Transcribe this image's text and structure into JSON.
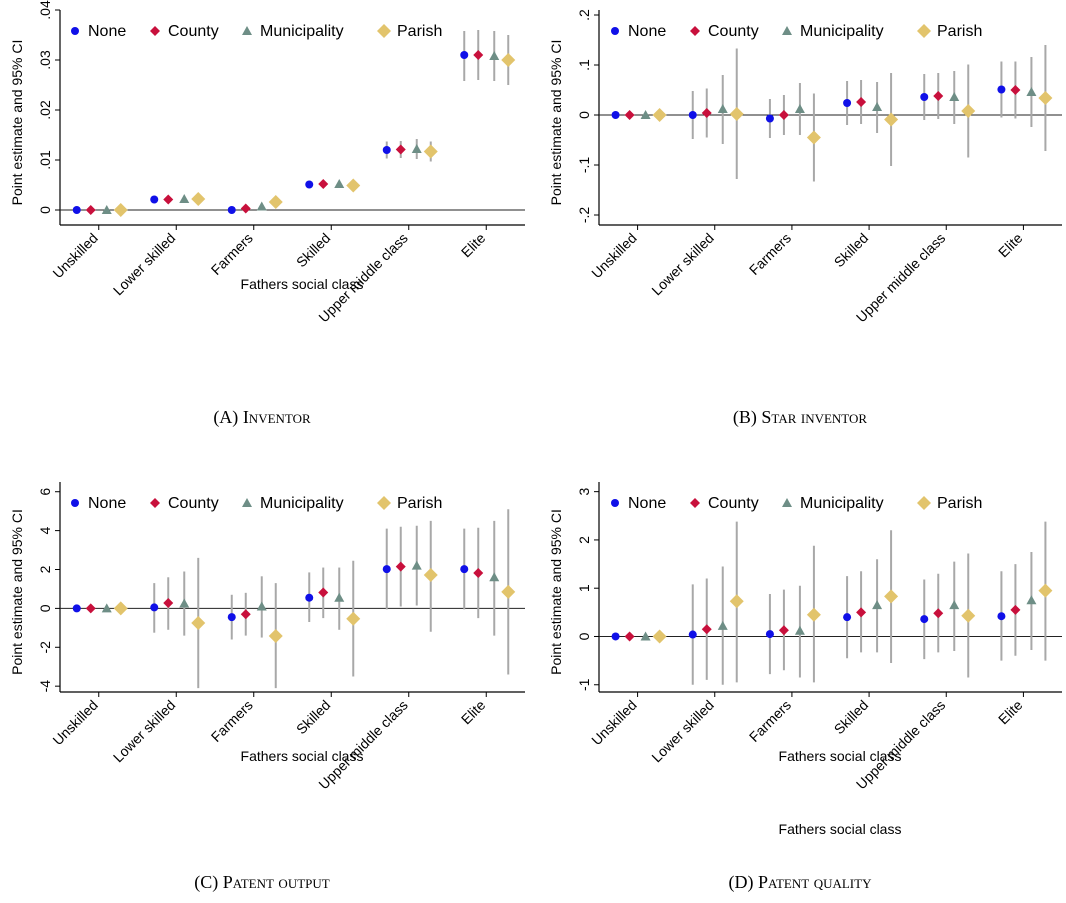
{
  "legend": {
    "none": "None",
    "county": "County",
    "municipality": "Municipality",
    "parish": "Parish"
  },
  "colors": {
    "none": "#1010e8",
    "county": "#c8103c",
    "municipality": "#6e8e86",
    "parish": "#e2c46c",
    "ci": "#a8a8a8",
    "axis": "#000000"
  },
  "chart_data": [
    {
      "type": "scatter",
      "caption_prefix": "(A) ",
      "caption": "Inventor",
      "xlabel": "Fathers social class",
      "ylabel": "Point estimate and 95% CI",
      "categories": [
        "Unskilled",
        "Lower skilled",
        "Farmers",
        "Skilled",
        "Upper middle class",
        "Elite"
      ],
      "ylim": [
        -0.003,
        0.04
      ],
      "yticks": [
        0,
        0.01,
        0.02,
        0.03,
        0.04
      ],
      "ytick_labels": [
        "0",
        ".01",
        ".02",
        ".03",
        ".04"
      ],
      "reference_line": 0,
      "legend_position": "top",
      "series": [
        {
          "name": "None",
          "marker": "circle",
          "values": [
            0,
            0.0021,
            0,
            0.0051,
            0.012,
            0.031
          ],
          "ci_low": [
            0,
            0.0018,
            -0.0003,
            0.0046,
            0.0103,
            0.0258
          ],
          "ci_high": [
            0,
            0.0024,
            0.0003,
            0.0056,
            0.0137,
            0.0358
          ]
        },
        {
          "name": "County",
          "marker": "diamond",
          "values": [
            0,
            0.0021,
            0.0003,
            0.0052,
            0.0121,
            0.031
          ],
          "ci_low": [
            0,
            0.0018,
            0,
            0.0047,
            0.0104,
            0.026
          ],
          "ci_high": [
            0,
            0.0024,
            0.0006,
            0.0057,
            0.0138,
            0.036
          ]
        },
        {
          "name": "Municipality",
          "marker": "triangle",
          "values": [
            0,
            0.0022,
            0.0007,
            0.0052,
            0.0122,
            0.0308
          ],
          "ci_low": [
            -0.0002,
            0.0018,
            0.0002,
            0.0046,
            0.0102,
            0.0258
          ],
          "ci_high": [
            0.0002,
            0.0026,
            0.0012,
            0.0058,
            0.0142,
            0.0358
          ]
        },
        {
          "name": "Parish",
          "marker": "diamond",
          "values": [
            0,
            0.0022,
            0.0016,
            0.0049,
            0.0117,
            0.03
          ],
          "ci_low": [
            -0.0003,
            0.0017,
            0.0009,
            0.0041,
            0.0097,
            0.025
          ],
          "ci_high": [
            0.0003,
            0.0027,
            0.0023,
            0.0057,
            0.0137,
            0.035
          ]
        }
      ]
    },
    {
      "type": "scatter",
      "caption_prefix": "(B) ",
      "caption": "Star inventor",
      "xlabel": "Fathers social class",
      "ylabel": "Point estimate and 95% CI",
      "categories": [
        "Unskilled",
        "Lower skilled",
        "Farmers",
        "Skilled",
        "Upper middle class",
        "Elite"
      ],
      "ylim": [
        -0.22,
        0.21
      ],
      "yticks": [
        -0.2,
        -0.1,
        0,
        0.1,
        0.2
      ],
      "ytick_labels": [
        "-.2",
        "-.1",
        "0",
        ".1",
        ".2"
      ],
      "reference_line": 0,
      "legend_position": "top",
      "series": [
        {
          "name": "None",
          "marker": "circle",
          "values": [
            0,
            0,
            -0.007,
            0.024,
            0.036,
            0.051
          ],
          "ci_low": [
            0,
            -0.048,
            -0.046,
            -0.02,
            -0.01,
            -0.005
          ],
          "ci_high": [
            0,
            0.048,
            0.032,
            0.068,
            0.082,
            0.107
          ]
        },
        {
          "name": "County",
          "marker": "diamond",
          "values": [
            0,
            0.004,
            0,
            0.026,
            0.038,
            0.05
          ],
          "ci_low": [
            0,
            -0.045,
            -0.04,
            -0.018,
            -0.008,
            -0.007
          ],
          "ci_high": [
            0,
            0.053,
            0.04,
            0.07,
            0.084,
            0.107
          ]
        },
        {
          "name": "Municipality",
          "marker": "triangle",
          "values": [
            0,
            0.012,
            0.012,
            0.016,
            0.036,
            0.046
          ],
          "ci_low": [
            -0.003,
            -0.058,
            -0.04,
            -0.036,
            -0.018,
            -0.024
          ],
          "ci_high": [
            0.003,
            0.08,
            0.064,
            0.066,
            0.088,
            0.116
          ]
        },
        {
          "name": "Parish",
          "marker": "diamond",
          "values": [
            0,
            0.002,
            -0.045,
            -0.009,
            0.008,
            0.034
          ],
          "ci_low": [
            -0.005,
            -0.128,
            -0.133,
            -0.102,
            -0.085,
            -0.072
          ],
          "ci_high": [
            0.005,
            0.133,
            0.043,
            0.084,
            0.101,
            0.14
          ]
        }
      ]
    },
    {
      "type": "scatter",
      "caption_prefix": "(C) ",
      "caption": "Patent output",
      "xlabel": "Fathers social class",
      "ylabel": "Point estimate and 95% CI",
      "categories": [
        "Unskilled",
        "Lower skilled",
        "Farmers",
        "Skilled",
        "Upper middle class",
        "Elite"
      ],
      "ylim": [
        -4.3,
        6.5
      ],
      "yticks": [
        -4,
        -2,
        0,
        2,
        4,
        6
      ],
      "ytick_labels": [
        "-4",
        "-2",
        "0",
        "2",
        "4",
        "6"
      ],
      "reference_line": 0,
      "legend_position": "top",
      "series": [
        {
          "name": "None",
          "marker": "circle",
          "values": [
            0,
            0.05,
            -0.45,
            0.55,
            2.02,
            2.02
          ],
          "ci_low": [
            0,
            -1.25,
            -1.6,
            -0.7,
            -0.05,
            -0.05
          ],
          "ci_high": [
            0,
            1.3,
            0.7,
            1.85,
            4.1,
            4.1
          ]
        },
        {
          "name": "County",
          "marker": "diamond",
          "values": [
            0,
            0.28,
            -0.3,
            0.82,
            2.15,
            1.82
          ],
          "ci_low": [
            0,
            -1.1,
            -1.4,
            -0.5,
            0.1,
            -0.5
          ],
          "ci_high": [
            0,
            1.6,
            0.8,
            2.1,
            4.2,
            4.15
          ]
        },
        {
          "name": "Municipality",
          "marker": "triangle",
          "values": [
            0,
            0.25,
            0.1,
            0.55,
            2.2,
            1.6
          ],
          "ci_low": [
            -0.05,
            -1.4,
            -1.5,
            -1.1,
            0.15,
            -1.4
          ],
          "ci_high": [
            0.05,
            1.9,
            1.65,
            2.1,
            4.25,
            4.5
          ]
        },
        {
          "name": "Parish",
          "marker": "diamond",
          "values": [
            0,
            -0.75,
            -1.42,
            -0.53,
            1.72,
            0.85
          ],
          "ci_low": [
            -0.1,
            -4.1,
            -4.1,
            -3.5,
            -1.2,
            -3.4
          ],
          "ci_high": [
            0.1,
            2.6,
            1.3,
            2.45,
            4.5,
            5.1
          ]
        }
      ]
    },
    {
      "type": "scatter",
      "caption_prefix": "(D) ",
      "caption": "Patent quality",
      "xlabel": "Fathers social class",
      "ylabel": "Point estimate and 95% CI",
      "categories": [
        "Unskilled",
        "Lower skilled",
        "Farmers",
        "Skilled",
        "Upper middle class",
        "Elite"
      ],
      "ylim": [
        -1.15,
        3.2
      ],
      "yticks": [
        -1,
        0,
        1,
        2,
        3
      ],
      "ytick_labels": [
        "-1",
        "0",
        "1",
        "2",
        "3"
      ],
      "reference_line": 0,
      "legend_position": "top",
      "series": [
        {
          "name": "None",
          "marker": "circle",
          "values": [
            0,
            0.04,
            0.05,
            0.4,
            0.36,
            0.42
          ],
          "ci_low": [
            0,
            -1.0,
            -0.78,
            -0.45,
            -0.47,
            -0.5
          ],
          "ci_high": [
            0,
            1.08,
            0.88,
            1.25,
            1.18,
            1.35
          ]
        },
        {
          "name": "County",
          "marker": "diamond",
          "values": [
            0,
            0.15,
            0.13,
            0.5,
            0.48,
            0.55
          ],
          "ci_low": [
            0,
            -0.9,
            -0.7,
            -0.33,
            -0.33,
            -0.4
          ],
          "ci_high": [
            0,
            1.2,
            0.97,
            1.35,
            1.3,
            1.5
          ]
        },
        {
          "name": "Municipality",
          "marker": "triangle",
          "values": [
            0,
            0.22,
            0.12,
            0.65,
            0.65,
            0.75
          ],
          "ci_low": [
            -0.02,
            -1.0,
            -0.85,
            -0.33,
            -0.3,
            -0.28
          ],
          "ci_high": [
            0.02,
            1.45,
            1.05,
            1.6,
            1.55,
            1.75
          ]
        },
        {
          "name": "Parish",
          "marker": "diamond",
          "values": [
            0,
            0.73,
            0.45,
            0.83,
            0.43,
            0.95
          ],
          "ci_low": [
            -0.03,
            -0.95,
            -0.95,
            -0.55,
            -0.85,
            -0.5
          ],
          "ci_high": [
            0.03,
            2.38,
            1.88,
            2.2,
            1.72,
            2.38
          ]
        }
      ]
    }
  ]
}
